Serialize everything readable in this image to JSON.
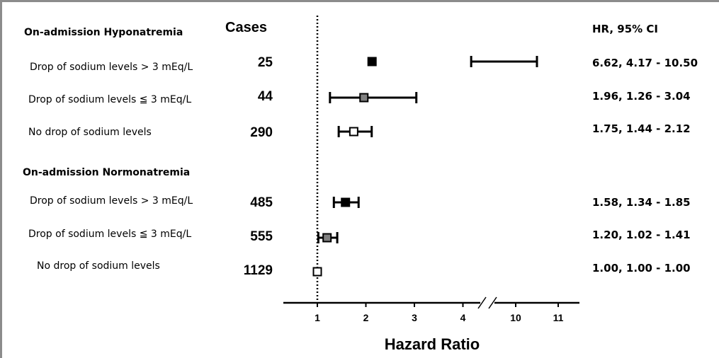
{
  "chart_data": {
    "type": "forest",
    "x_axis": {
      "label": "Hazard Ratio",
      "ticks": [
        "1",
        "2",
        "3",
        "4",
        "10",
        "11"
      ],
      "break_between": [
        "4",
        "10"
      ],
      "reference_line": 1
    },
    "headers": {
      "cases": "Cases",
      "hr_ci": "HR, 95% CI"
    },
    "groups": [
      {
        "name": "On-admission  Hyponatremia",
        "rows": [
          {
            "label": "Drop of sodium levels > 3 mEq/L",
            "cases": "25",
            "hr": 6.62,
            "lo": 4.17,
            "hi": 10.5,
            "text": "6.62, 4.17 - 10.50",
            "marker": "filled"
          },
          {
            "label": "Drop of sodium levels ≦ 3 mEq/L",
            "cases": "44",
            "hr": 1.96,
            "lo": 1.26,
            "hi": 3.04,
            "text": "1.96, 1.26 - 3.04",
            "marker": "gray"
          },
          {
            "label": "No drop of sodium levels",
            "cases": "290",
            "hr": 1.75,
            "lo": 1.44,
            "hi": 2.12,
            "text": "1.75, 1.44 - 2.12",
            "marker": "open"
          }
        ]
      },
      {
        "name": "On-admission  Normonatremia",
        "rows": [
          {
            "label": "Drop of sodium levels > 3 mEq/L",
            "cases": "485",
            "hr": 1.58,
            "lo": 1.34,
            "hi": 1.85,
            "text": "1.58, 1.34 - 1.85",
            "marker": "filled"
          },
          {
            "label": "Drop of sodium levels ≦ 3 mEq/L",
            "cases": "555",
            "hr": 1.2,
            "lo": 1.02,
            "hi": 1.41,
            "text": "1.20, 1.02 - 1.41",
            "marker": "gray"
          },
          {
            "label": "No drop of sodium levels",
            "cases": "1129",
            "hr": 1.0,
            "lo": 1.0,
            "hi": 1.0,
            "text": "1.00, 1.00 - 1.00",
            "marker": "open"
          }
        ]
      }
    ]
  }
}
